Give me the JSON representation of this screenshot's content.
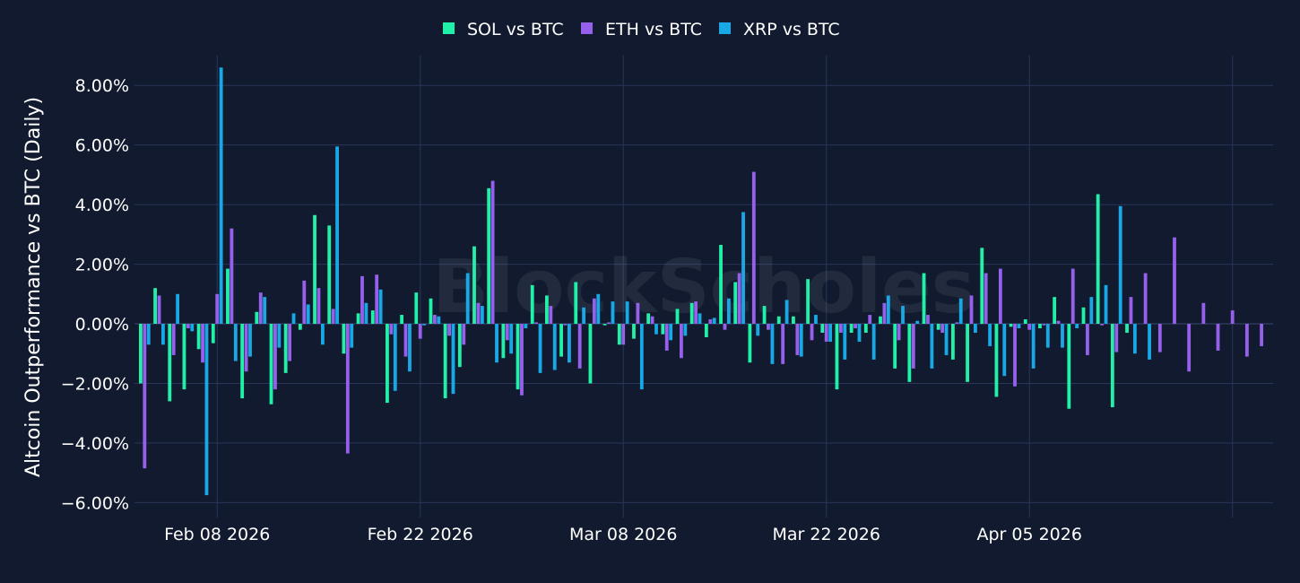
{
  "watermark": "BlockScholes",
  "chart_data": {
    "type": "bar",
    "ylabel": "Altcoin Outperformance vs BTC (Daily)",
    "xlabel": "",
    "ylim": [
      -6.5,
      9.0
    ],
    "y_ticks": [
      8,
      6,
      4,
      2,
      0,
      -2,
      -4,
      -6
    ],
    "y_tick_labels": [
      "8.00%",
      "6.00%",
      "4.00%",
      "2.00%",
      "0.00%",
      "−2.00%",
      "−4.00%",
      "−6.00%"
    ],
    "x_tick_days": [
      5,
      19,
      33,
      47,
      61
    ],
    "x_tick_labels": [
      "Feb 08 2026",
      "Feb 22 2026",
      "Mar 08 2026",
      "Mar 22 2026",
      "Apr 05 2026"
    ],
    "x_start_label": "Feb 03 2026",
    "x_range_days": [
      -0.7,
      77.8
    ],
    "legend_position": "top-center",
    "grid": true,
    "series": [
      {
        "name": "SOL vs BTC",
        "color": "#21f0a8",
        "values": [
          -2.0,
          1.2,
          -2.6,
          -2.2,
          -0.85,
          -0.65,
          1.85,
          -2.5,
          0.4,
          -2.7,
          -1.65,
          -0.2,
          3.65,
          3.3,
          -1.0,
          0.35,
          0.45,
          -2.65,
          0.3,
          1.05,
          0.85,
          -2.5,
          -1.45,
          2.6,
          4.55,
          -1.15,
          -2.2,
          1.3,
          0.95,
          -1.1,
          1.4,
          -2.0,
          -0.05,
          -0.7,
          -0.5,
          0.35,
          -0.35,
          0.5,
          0.7,
          -0.45,
          2.65,
          1.4,
          -1.3,
          0.6,
          0.25,
          0.25,
          1.5,
          -0.3,
          -2.2,
          -0.3,
          -0.3,
          0.25,
          -1.5,
          -1.95,
          1.7,
          -0.2,
          -1.2,
          -1.95,
          2.55,
          -2.45,
          -0.1,
          0.15,
          -0.15,
          0.9,
          -2.85,
          0.55,
          4.35,
          -2.8,
          -0.3
        ]
      },
      {
        "name": "ETH vs BTC",
        "color": "#9660ec",
        "values": [
          -4.85,
          0.95,
          -1.05,
          -0.15,
          -1.3,
          1.0,
          3.2,
          -1.6,
          1.05,
          -2.2,
          -1.25,
          1.45,
          1.2,
          0.5,
          -4.35,
          1.6,
          1.65,
          -0.35,
          -1.1,
          -0.5,
          0.3,
          -0.4,
          -0.7,
          0.7,
          4.8,
          -0.55,
          -2.4,
          0.05,
          0.6,
          -0.05,
          -1.5,
          0.85,
          0.05,
          -0.7,
          0.7,
          0.25,
          -0.9,
          -1.15,
          0.75,
          0.15,
          -0.2,
          1.7,
          5.1,
          -0.2,
          -1.35,
          -1.05,
          -0.55,
          -0.6,
          -0.3,
          -0.15,
          0.3,
          0.7,
          -0.55,
          -1.5,
          0.3,
          -0.3,
          0.05,
          0.95,
          1.7,
          1.85,
          -2.1,
          -0.2,
          -0.05,
          0.1,
          1.85,
          -1.05,
          -0.05,
          -0.95,
          0.9,
          1.7,
          -0.95,
          2.9,
          -1.6,
          0.7,
          -0.9,
          0.45,
          -1.1,
          -0.75
        ]
      },
      {
        "name": "XRP vs BTC",
        "color": "#19a8e6",
        "values": [
          -0.7,
          -0.7,
          1.0,
          -0.25,
          -5.75,
          8.6,
          -1.25,
          -1.1,
          0.9,
          -0.8,
          0.35,
          0.65,
          -0.7,
          5.95,
          -0.8,
          0.7,
          1.15,
          -2.25,
          -1.6,
          -0.05,
          0.25,
          -2.35,
          1.7,
          0.6,
          -1.3,
          -1.0,
          -0.15,
          -1.65,
          -1.55,
          -1.3,
          0.55,
          1.0,
          0.75,
          0.75,
          -2.2,
          -0.35,
          -0.55,
          -0.4,
          0.35,
          0.2,
          0.85,
          3.75,
          -0.4,
          -1.35,
          0.8,
          -1.1,
          0.3,
          -0.6,
          -1.2,
          -0.6,
          -1.2,
          0.95,
          0.6,
          0.1,
          -1.5,
          -1.05,
          0.85,
          -0.3,
          -0.75,
          -1.75,
          -0.15,
          -1.5,
          -0.8,
          -0.8,
          -0.15,
          0.9,
          1.3,
          3.95,
          -1.0,
          -1.2
        ]
      }
    ]
  }
}
